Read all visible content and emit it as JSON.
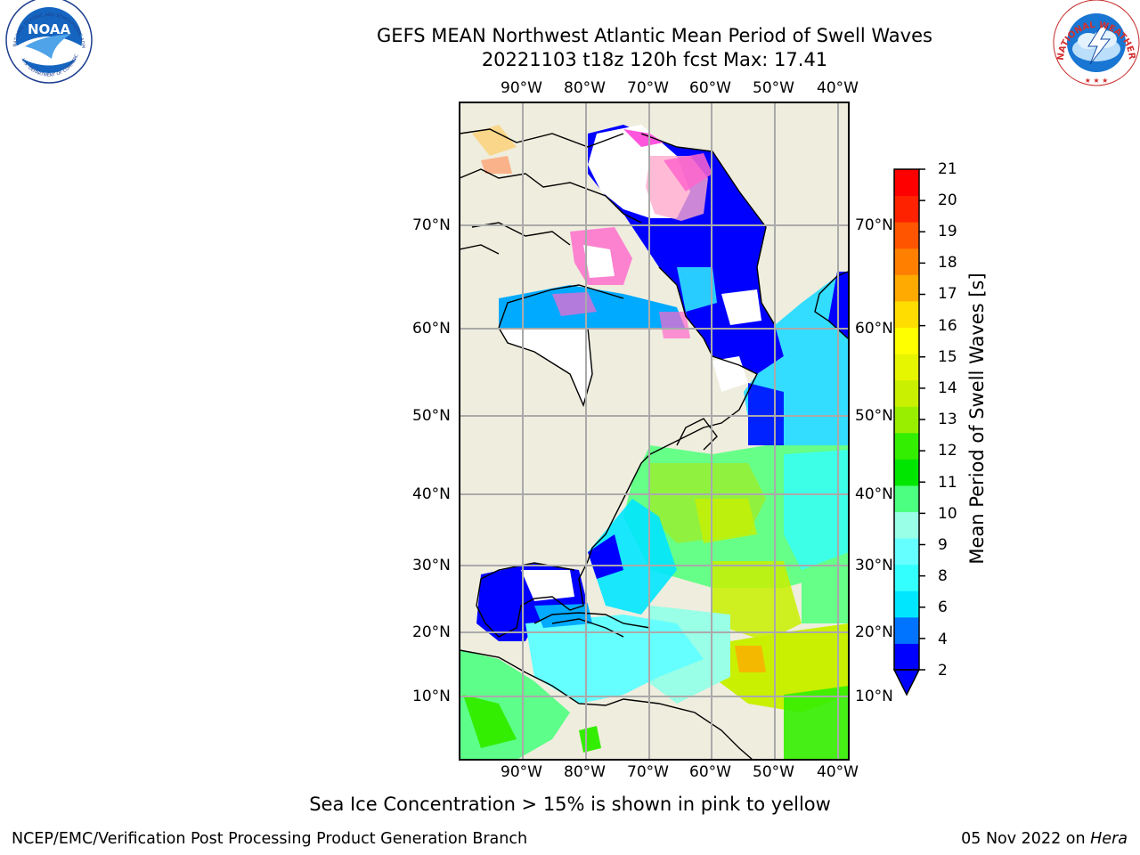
{
  "header": {
    "title_line1": "GEFS MEAN Northwest Atlantic Mean Period of Swell Waves",
    "title_line2": "20221103 t18z 120h fcst   Max: 17.41"
  },
  "map": {
    "longitude_labels": [
      "90°W",
      "80°W",
      "70°W",
      "60°W",
      "50°W",
      "40°W"
    ],
    "latitude_labels": [
      "70°N",
      "60°N",
      "50°N",
      "40°N",
      "30°N",
      "20°N",
      "10°N"
    ],
    "colors": {
      "land": "#efedde",
      "ice": "#ff66cc",
      "deep": "#0000ff"
    }
  },
  "colorbar": {
    "title": "Mean Period of Swell Waves [s]",
    "ticks": [
      "21",
      "20",
      "19",
      "18",
      "17",
      "16",
      "15",
      "14",
      "13",
      "12",
      "11",
      "10",
      "9",
      "8",
      "6",
      "4",
      "2"
    ],
    "colors": [
      "#0000ff",
      "#0073ff",
      "#00e6ff",
      "#33ffff",
      "#66ffff",
      "#99ffe6",
      "#4dff80",
      "#00e600",
      "#33ee00",
      "#99ee00",
      "#c8f000",
      "#e6f500",
      "#ffff00",
      "#ffdd00",
      "#ffaa00",
      "#ff7f00",
      "#ff5500",
      "#ff2200",
      "#ff0000"
    ]
  },
  "caption": "Sea Ice Concentration > 15% is shown in pink to yellow",
  "footer": {
    "left": "NCEP/EMC/Verification Post Processing Product Generation Branch",
    "date": "05 Nov 2022 on ",
    "host": "Hera"
  },
  "logos": {
    "noaa": {
      "text": "NOAA",
      "ring_text": "NATIONAL OCEANIC AND ATMOSPHERIC ADMINISTRATION · U.S. DEPARTMENT OF COMMERCE"
    },
    "nws": {
      "ring_text": "NATIONAL WEATHER SERVICE"
    }
  }
}
